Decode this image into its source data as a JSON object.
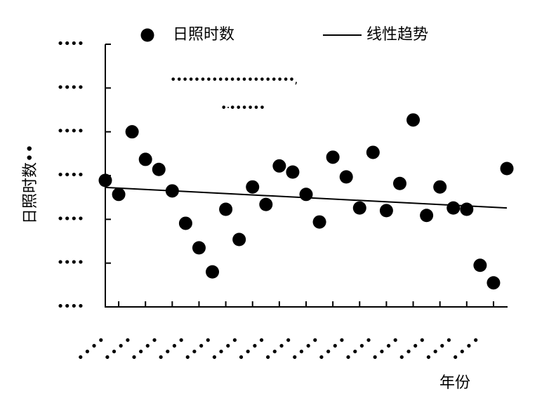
{
  "chart_data": {
    "type": "scatter",
    "ylabel": "日照时数••",
    "xlabel": "年份",
    "categories": [
      null,
      "••••",
      null,
      "••••",
      null,
      "••••",
      null,
      "••••",
      null,
      "••••",
      null,
      "••••",
      null,
      "••••",
      null,
      "••••",
      null,
      "••••",
      null,
      "••••",
      null,
      "••••",
      null,
      "••••",
      null,
      "••••",
      null,
      "••••",
      null,
      "••••",
      null
    ],
    "series": [
      {
        "name": "日照时数",
        "color": "#000000",
        "values": [
          2.89,
          2.57,
          4.0,
          3.37,
          3.14,
          2.65,
          1.91,
          1.35,
          0.8,
          2.23,
          1.54,
          2.74,
          2.34,
          3.22,
          3.08,
          2.57,
          1.94,
          3.42,
          2.97,
          2.26,
          3.53,
          2.2,
          2.82,
          4.27,
          2.09,
          2.74,
          2.26,
          2.23,
          0.95,
          0.55,
          3.16
        ]
      }
    ],
    "trend": {
      "name": "线性趋势",
      "color": "#000000",
      "values": [
        2.73,
        2.26
      ]
    },
    "annotations": [
      "•••••••••••••••••••••,",
      "•·••••••"
    ],
    "ylim": [
      0,
      6
    ],
    "yticks": [
      {
        "value": 0,
        "label": "••••"
      },
      {
        "value": 1,
        "label": "••••"
      },
      {
        "value": 2,
        "label": "••••"
      },
      {
        "value": 3,
        "label": "••••"
      },
      {
        "value": 4,
        "label": "••••"
      },
      {
        "value": 5,
        "label": "••••"
      },
      {
        "value": 6,
        "label": "••••"
      }
    ],
    "legend": "top"
  }
}
